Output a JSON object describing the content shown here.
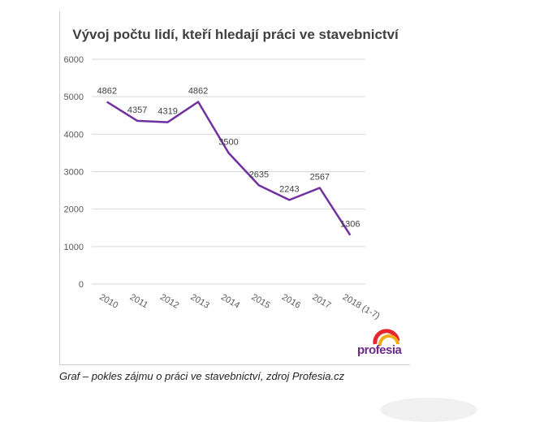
{
  "chart_data": {
    "type": "line",
    "title": "Vývoj počtu lidí, kteří hledají práci ve stavebnictví",
    "categories": [
      "2010",
      "2011",
      "2012",
      "2013",
      "2014",
      "2015",
      "2016",
      "2017",
      "2018 (1-7)"
    ],
    "series": [
      {
        "values": [
          4862,
          4357,
          4319,
          4862,
          3500,
          2635,
          2243,
          2567,
          1306
        ]
      }
    ],
    "data_labels": [
      "4862",
      "4357",
      "4319",
      "4862",
      "3500",
      "2635",
      "2243",
      "2567",
      "1306"
    ],
    "ylim": [
      0,
      6000
    ],
    "yticks": [
      "0",
      "1000",
      "2000",
      "3000",
      "4000",
      "5000",
      "6000"
    ],
    "grid": true,
    "line_color": "#7030a0"
  },
  "caption": "Graf – pokles zájmu o práci ve stavebnictví, zdroj Profesia.cz",
  "logo": {
    "text": "profesia",
    "accent_colors": [
      "#e5262d",
      "#f6a81c",
      "#6b2a86"
    ]
  }
}
